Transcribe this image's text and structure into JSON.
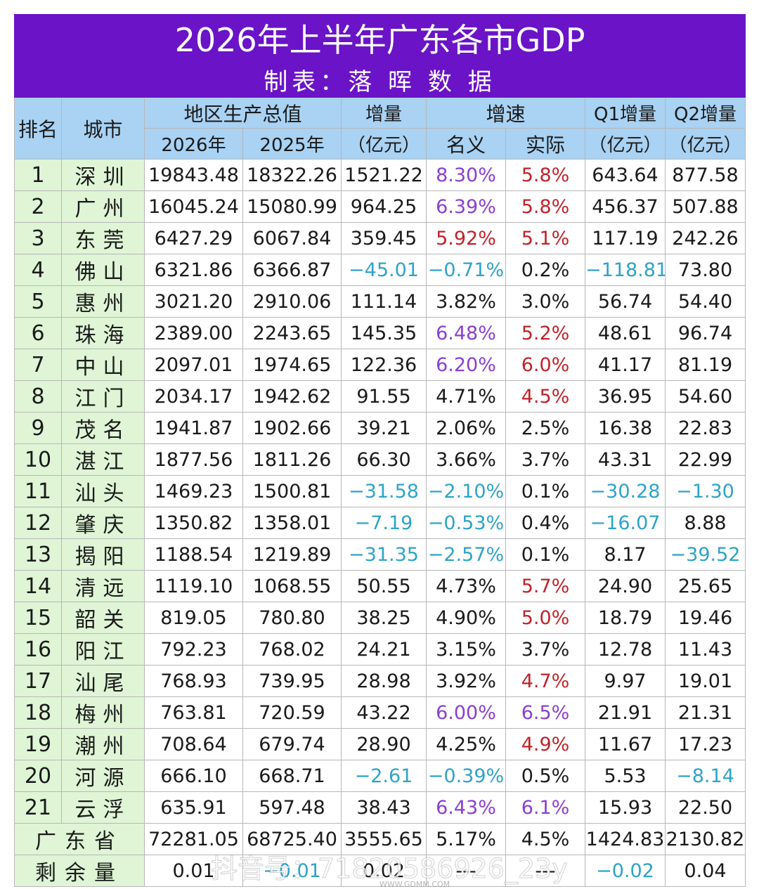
{
  "title": "2026年上半年广东各市GDP",
  "subtitle": "制表：落 晖 数 据",
  "headers": {
    "rank": "排名",
    "city": "城市",
    "gdp": "地区生产总值",
    "y2026": "2026年",
    "y2025": "2025年",
    "inc_top": "增量",
    "inc_bottom": "（亿元）",
    "growth": "增速",
    "nominal": "名义",
    "real": "实际",
    "q1_top": "Q1增量",
    "q1_bottom": "（亿元）",
    "q2_top": "Q2增量",
    "q2_bottom": "（亿元）"
  },
  "colors": {
    "purple": "#8a3fd0",
    "red": "#c0232a",
    "blue": "#2ea3c8",
    "black": "#1a1a1a"
  },
  "rows": [
    {
      "rank": "1",
      "city": "深圳",
      "v2026": "19843.48",
      "v2025": "18322.26",
      "inc": "1521.22",
      "nom": "8.30%",
      "real": "5.8%",
      "q1": "643.64",
      "q2": "877.58",
      "c": [
        "black",
        "purple",
        "red",
        "black",
        "black"
      ]
    },
    {
      "rank": "2",
      "city": "广州",
      "v2026": "16045.24",
      "v2025": "15080.99",
      "inc": "964.25",
      "nom": "6.39%",
      "real": "5.8%",
      "q1": "456.37",
      "q2": "507.88",
      "c": [
        "black",
        "purple",
        "red",
        "black",
        "black"
      ]
    },
    {
      "rank": "3",
      "city": "东莞",
      "v2026": "6427.29",
      "v2025": "6067.84",
      "inc": "359.45",
      "nom": "5.92%",
      "real": "5.1%",
      "q1": "117.19",
      "q2": "242.26",
      "c": [
        "black",
        "red",
        "red",
        "black",
        "black"
      ]
    },
    {
      "rank": "4",
      "city": "佛山",
      "v2026": "6321.86",
      "v2025": "6366.87",
      "inc": "−45.01",
      "nom": "−0.71%",
      "real": "0.2%",
      "q1": "−118.81",
      "q2": "73.80",
      "c": [
        "blue",
        "blue",
        "black",
        "blue",
        "black"
      ]
    },
    {
      "rank": "5",
      "city": "惠州",
      "v2026": "3021.20",
      "v2025": "2910.06",
      "inc": "111.14",
      "nom": "3.82%",
      "real": "3.0%",
      "q1": "56.74",
      "q2": "54.40",
      "c": [
        "black",
        "black",
        "black",
        "black",
        "black"
      ]
    },
    {
      "rank": "6",
      "city": "珠海",
      "v2026": "2389.00",
      "v2025": "2243.65",
      "inc": "145.35",
      "nom": "6.48%",
      "real": "5.2%",
      "q1": "48.61",
      "q2": "96.74",
      "c": [
        "black",
        "purple",
        "red",
        "black",
        "black"
      ]
    },
    {
      "rank": "7",
      "city": "中山",
      "v2026": "2097.01",
      "v2025": "1974.65",
      "inc": "122.36",
      "nom": "6.20%",
      "real": "6.0%",
      "q1": "41.17",
      "q2": "81.19",
      "c": [
        "black",
        "purple",
        "red",
        "black",
        "black"
      ]
    },
    {
      "rank": "8",
      "city": "江门",
      "v2026": "2034.17",
      "v2025": "1942.62",
      "inc": "91.55",
      "nom": "4.71%",
      "real": "4.5%",
      "q1": "36.95",
      "q2": "54.60",
      "c": [
        "black",
        "black",
        "red",
        "black",
        "black"
      ]
    },
    {
      "rank": "9",
      "city": "茂名",
      "v2026": "1941.87",
      "v2025": "1902.66",
      "inc": "39.21",
      "nom": "2.06%",
      "real": "2.5%",
      "q1": "16.38",
      "q2": "22.83",
      "c": [
        "black",
        "black",
        "black",
        "black",
        "black"
      ]
    },
    {
      "rank": "10",
      "city": "湛江",
      "v2026": "1877.56",
      "v2025": "1811.26",
      "inc": "66.30",
      "nom": "3.66%",
      "real": "3.7%",
      "q1": "43.31",
      "q2": "22.99",
      "c": [
        "black",
        "black",
        "black",
        "black",
        "black"
      ]
    },
    {
      "rank": "11",
      "city": "汕头",
      "v2026": "1469.23",
      "v2025": "1500.81",
      "inc": "−31.58",
      "nom": "−2.10%",
      "real": "0.1%",
      "q1": "−30.28",
      "q2": "−1.30",
      "c": [
        "blue",
        "blue",
        "black",
        "blue",
        "blue"
      ]
    },
    {
      "rank": "12",
      "city": "肇庆",
      "v2026": "1350.82",
      "v2025": "1358.01",
      "inc": "−7.19",
      "nom": "−0.53%",
      "real": "0.4%",
      "q1": "−16.07",
      "q2": "8.88",
      "c": [
        "blue",
        "blue",
        "black",
        "blue",
        "black"
      ]
    },
    {
      "rank": "13",
      "city": "揭阳",
      "v2026": "1188.54",
      "v2025": "1219.89",
      "inc": "−31.35",
      "nom": "−2.57%",
      "real": "0.1%",
      "q1": "8.17",
      "q2": "−39.52",
      "c": [
        "blue",
        "blue",
        "black",
        "black",
        "blue"
      ]
    },
    {
      "rank": "14",
      "city": "清远",
      "v2026": "1119.10",
      "v2025": "1068.55",
      "inc": "50.55",
      "nom": "4.73%",
      "real": "5.7%",
      "q1": "24.90",
      "q2": "25.65",
      "c": [
        "black",
        "black",
        "red",
        "black",
        "black"
      ]
    },
    {
      "rank": "15",
      "city": "韶关",
      "v2026": "819.05",
      "v2025": "780.80",
      "inc": "38.25",
      "nom": "4.90%",
      "real": "5.0%",
      "q1": "18.79",
      "q2": "19.46",
      "c": [
        "black",
        "black",
        "red",
        "black",
        "black"
      ]
    },
    {
      "rank": "16",
      "city": "阳江",
      "v2026": "792.23",
      "v2025": "768.02",
      "inc": "24.21",
      "nom": "3.15%",
      "real": "3.7%",
      "q1": "12.78",
      "q2": "11.43",
      "c": [
        "black",
        "black",
        "black",
        "black",
        "black"
      ]
    },
    {
      "rank": "17",
      "city": "汕尾",
      "v2026": "768.93",
      "v2025": "739.95",
      "inc": "28.98",
      "nom": "3.92%",
      "real": "4.7%",
      "q1": "9.97",
      "q2": "19.01",
      "c": [
        "black",
        "black",
        "red",
        "black",
        "black"
      ]
    },
    {
      "rank": "18",
      "city": "梅州",
      "v2026": "763.81",
      "v2025": "720.59",
      "inc": "43.22",
      "nom": "6.00%",
      "real": "6.5%",
      "q1": "21.91",
      "q2": "21.31",
      "c": [
        "black",
        "purple",
        "purple",
        "black",
        "black"
      ]
    },
    {
      "rank": "19",
      "city": "潮州",
      "v2026": "708.64",
      "v2025": "679.74",
      "inc": "28.90",
      "nom": "4.25%",
      "real": "4.9%",
      "q1": "11.67",
      "q2": "17.23",
      "c": [
        "black",
        "black",
        "red",
        "black",
        "black"
      ]
    },
    {
      "rank": "20",
      "city": "河源",
      "v2026": "666.10",
      "v2025": "668.71",
      "inc": "−2.61",
      "nom": "−0.39%",
      "real": "0.5%",
      "q1": "5.53",
      "q2": "−8.14",
      "c": [
        "blue",
        "blue",
        "black",
        "black",
        "blue"
      ]
    },
    {
      "rank": "21",
      "city": "云浮",
      "v2026": "635.91",
      "v2025": "597.48",
      "inc": "38.43",
      "nom": "6.43%",
      "real": "6.1%",
      "q1": "15.93",
      "q2": "22.50",
      "c": [
        "black",
        "purple",
        "purple",
        "black",
        "black"
      ]
    }
  ],
  "total": {
    "label": "广东省",
    "v2026": "72281.05",
    "v2025": "68725.40",
    "inc": "3555.65",
    "nom": "5.17%",
    "real": "4.5%",
    "q1": "1424.83",
    "q2": "2130.82"
  },
  "remainder": {
    "label": "剩余量",
    "v2026": "0.01",
    "v2025": "−0.01",
    "inc": "0.02",
    "nom": "---",
    "real": "---",
    "q1": "−0.02",
    "q2": "0.04"
  },
  "watermark": "抖音号：71820586926_23y",
  "watermark_sub": "WWW.GDMM.COM"
}
